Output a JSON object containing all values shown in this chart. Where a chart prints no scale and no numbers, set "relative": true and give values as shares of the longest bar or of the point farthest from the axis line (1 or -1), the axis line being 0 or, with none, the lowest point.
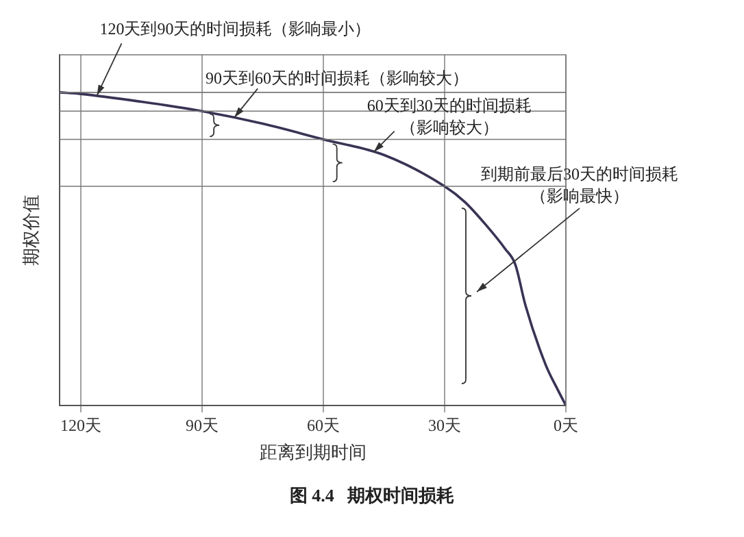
{
  "chart_data": {
    "type": "line",
    "relative": true,
    "xlabel": "距离到期时间",
    "ylabel": "期权价值",
    "x": [
      125.2,
      120,
      105,
      90,
      75,
      60,
      45,
      30,
      25,
      20,
      15,
      12.5,
      10,
      5,
      2,
      0
    ],
    "values": [
      1,
      0.995,
      0.97,
      0.94,
      0.9,
      0.85,
      0.8,
      0.7,
      0.65,
      0.58,
      0.5,
      0.45,
      0.32,
      0.13,
      0.05,
      0
    ],
    "color": "#3b3355",
    "marker": "none",
    "line_style": "solid",
    "grid": "x",
    "xlim": [
      125.2,
      0
    ],
    "xticks": [
      {
        "value": 120,
        "label": "120天"
      },
      {
        "value": 90,
        "label": "90天"
      },
      {
        "value": 60,
        "label": "60天"
      },
      {
        "value": 30,
        "label": "30天"
      },
      {
        "value": 0,
        "label": "0天"
      }
    ],
    "ref_lines": [
      {
        "axis": "y",
        "value": 1
      },
      {
        "axis": "y",
        "value": 0.94
      },
      {
        "axis": "y",
        "value": 0.85
      },
      {
        "axis": "y",
        "value": 0.7
      }
    ],
    "annotations": [
      {
        "text": "120天到90天的时间损耗（影响最小）",
        "x": 116,
        "y": 0.99
      },
      {
        "text": "90天到60天的时间损耗（影响较大）",
        "x": 82,
        "y": 0.92
      },
      {
        "text": "60天到30天的时间损耗（影响较大）",
        "x": 47.5,
        "y": 0.81
      },
      "到期前最后30天的时间损耗（影响最快）",
      "图 4.4   期权时间损耗"
    ]
  }
}
